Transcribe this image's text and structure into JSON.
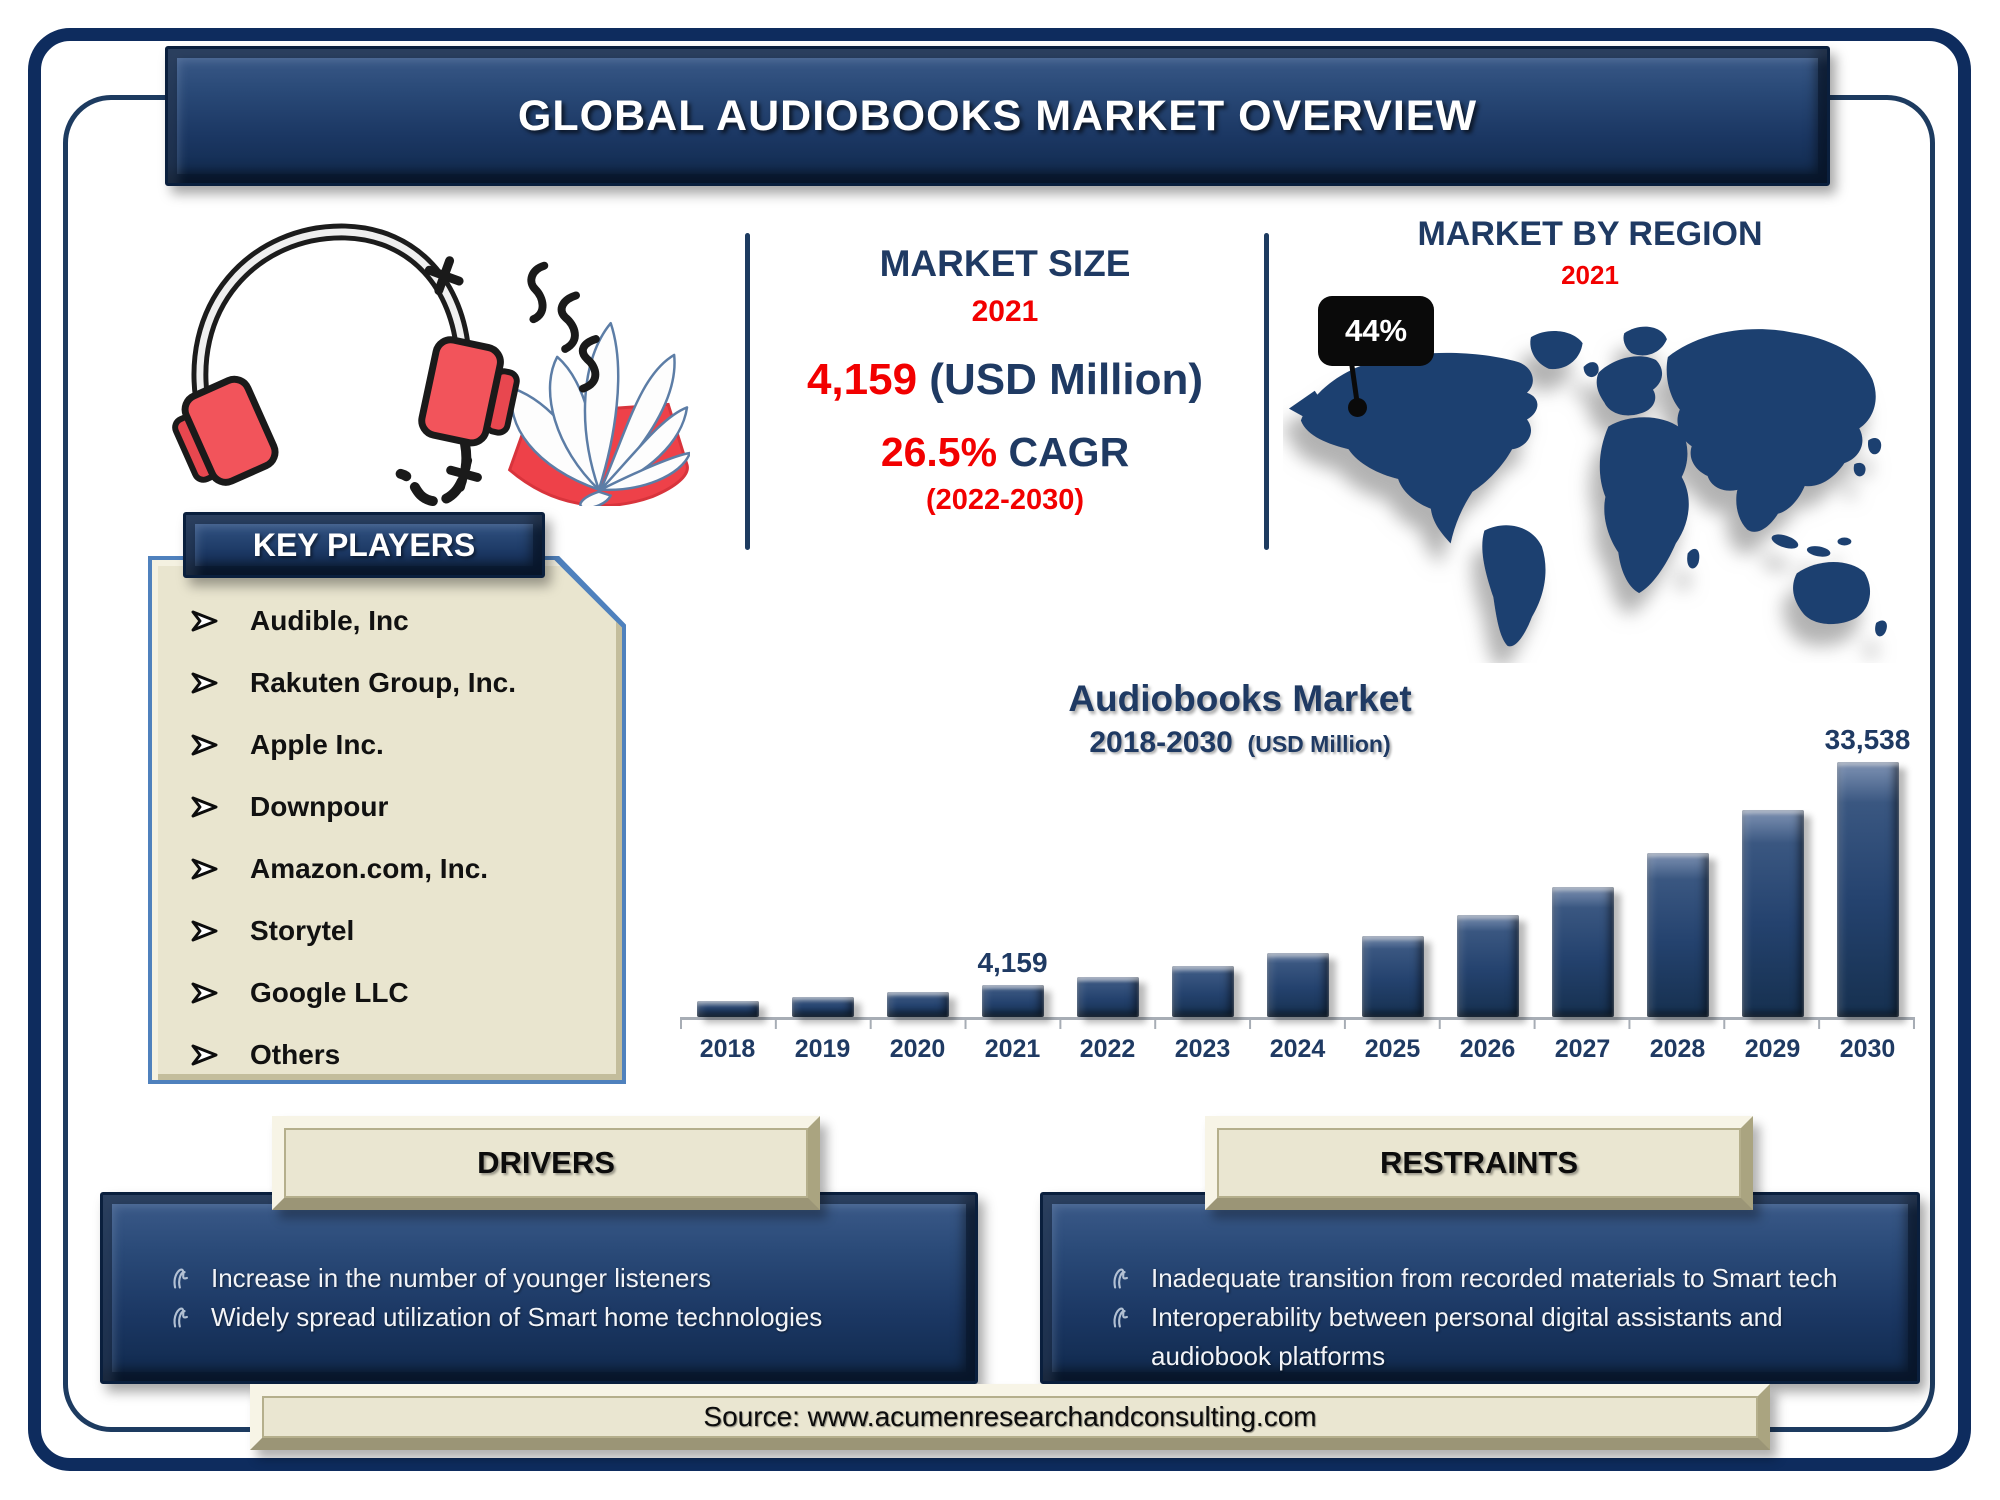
{
  "banner": {
    "title": "GLOBAL AUDIOBOOKS MARKET OVERVIEW"
  },
  "market_size": {
    "heading": "MARKET SIZE",
    "year": "2021",
    "value": "4,159",
    "value_suffix": " (USD Million)",
    "cagr_value": "26.5%",
    "cagr_suffix": " CAGR",
    "cagr_period": "(2022-2030)"
  },
  "market_by_region": {
    "heading": "MARKET BY REGION",
    "year": "2021",
    "north_america_share": "44%"
  },
  "key_players": {
    "heading": "KEY PLAYERS",
    "items": [
      "Audible, Inc",
      "Rakuten Group, Inc.",
      "Apple Inc.",
      "Downpour",
      "Amazon.com, Inc.",
      "Storytel",
      "Google LLC",
      "Others"
    ]
  },
  "chart_data": {
    "type": "bar",
    "title": "Audiobooks Market",
    "subtitle": "2018-2030",
    "unit_label": "(USD Million)",
    "categories": [
      "2018",
      "2019",
      "2020",
      "2021",
      "2022",
      "2023",
      "2024",
      "2025",
      "2026",
      "2027",
      "2028",
      "2029",
      "2030"
    ],
    "values": [
      2050,
      2600,
      3290,
      4159,
      5260,
      6660,
      8420,
      10650,
      13470,
      17040,
      21560,
      27280,
      33538
    ],
    "value_labels": [
      "",
      "",
      "",
      "4,159",
      "",
      "",
      "",
      "",
      "",
      "",
      "",
      "",
      "33,538"
    ],
    "ylim": [
      0,
      33538
    ],
    "grid": false,
    "legend": false,
    "bar_color": "#24426e"
  },
  "drivers": {
    "heading": "DRIVERS",
    "items": [
      "Increase in the number of younger listeners",
      "Widely spread utilization of Smart home technologies"
    ]
  },
  "restraints": {
    "heading": "RESTRAINTS",
    "items": [
      "Inadequate transition from recorded materials to Smart tech",
      "Interoperability between personal digital assistants and audiobook platforms"
    ]
  },
  "source": {
    "text": "Source: www.acumenresearchandconsulting.com"
  },
  "colors": {
    "navy_text": "#1f3a63",
    "accent_red": "#f20000",
    "banner_navy": "#1b3763",
    "map_blue": "#1c4170",
    "bar_navy": "#24426e",
    "cream": "#e9e5cf",
    "callout_black": "#0a0a0a",
    "frame_navy": "#0e2c5e"
  }
}
